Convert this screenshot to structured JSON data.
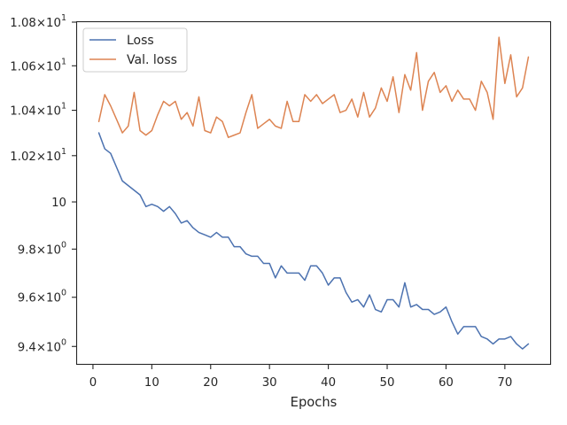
{
  "chart_data": {
    "type": "line",
    "title": "",
    "xlabel": "Epochs",
    "ylabel": "",
    "yscale": "log",
    "xlim": [
      -2.7,
      77.7
    ],
    "ylim": [
      9.33,
      10.8
    ],
    "xticks": [
      0,
      10,
      20,
      30,
      40,
      50,
      60,
      70
    ],
    "xtick_labels": [
      "0",
      "10",
      "20",
      "30",
      "40",
      "50",
      "60",
      "70"
    ],
    "yticks": [
      9.4,
      9.6,
      9.8,
      10.0,
      10.2,
      10.4,
      10.6,
      10.8
    ],
    "ytick_labels": [
      {
        "mant": "9.4",
        "exp": "0"
      },
      {
        "mant": "9.6",
        "exp": "0"
      },
      {
        "mant": "9.8",
        "exp": "0"
      },
      {
        "mant": "10",
        "exp": ""
      },
      {
        "mant": "1.02",
        "exp": "1"
      },
      {
        "mant": "1.04",
        "exp": "1"
      },
      {
        "mant": "1.06",
        "exp": "1"
      },
      {
        "mant": "1.08",
        "exp": "1"
      }
    ],
    "grid": false,
    "legend_position": "upper-left",
    "x": [
      1,
      2,
      3,
      4,
      5,
      6,
      7,
      8,
      9,
      10,
      11,
      12,
      13,
      14,
      15,
      16,
      17,
      18,
      19,
      20,
      21,
      22,
      23,
      24,
      25,
      26,
      27,
      28,
      29,
      30,
      31,
      32,
      33,
      34,
      35,
      36,
      37,
      38,
      39,
      40,
      41,
      42,
      43,
      44,
      45,
      46,
      47,
      48,
      49,
      50,
      51,
      52,
      53,
      54,
      55,
      56,
      57,
      58,
      59,
      60,
      61,
      62,
      63,
      64,
      65,
      66,
      67,
      68,
      69,
      70,
      71,
      72,
      73,
      74
    ],
    "series": [
      {
        "name": "Loss",
        "color": "#4c72b0",
        "values": [
          10.3,
          10.23,
          10.21,
          10.15,
          10.09,
          10.07,
          10.05,
          10.03,
          9.98,
          9.99,
          9.98,
          9.96,
          9.98,
          9.95,
          9.91,
          9.92,
          9.89,
          9.87,
          9.86,
          9.85,
          9.87,
          9.85,
          9.85,
          9.81,
          9.81,
          9.78,
          9.77,
          9.77,
          9.74,
          9.74,
          9.68,
          9.73,
          9.7,
          9.7,
          9.7,
          9.67,
          9.73,
          9.73,
          9.7,
          9.65,
          9.68,
          9.68,
          9.62,
          9.58,
          9.59,
          9.56,
          9.61,
          9.55,
          9.54,
          9.59,
          9.59,
          9.56,
          9.66,
          9.56,
          9.57,
          9.55,
          9.55,
          9.53,
          9.54,
          9.56,
          9.5,
          9.45,
          9.48,
          9.48,
          9.48,
          9.44,
          9.43,
          9.41,
          9.43,
          9.43,
          9.44,
          9.41,
          9.39,
          9.41
        ]
      },
      {
        "name": "Val. loss",
        "color": "#dd8452",
        "values": [
          10.35,
          10.47,
          10.42,
          10.36,
          10.3,
          10.33,
          10.48,
          10.31,
          10.29,
          10.31,
          10.38,
          10.44,
          10.42,
          10.44,
          10.36,
          10.39,
          10.33,
          10.46,
          10.31,
          10.3,
          10.37,
          10.35,
          10.28,
          10.29,
          10.3,
          10.39,
          10.47,
          10.32,
          10.34,
          10.36,
          10.33,
          10.32,
          10.44,
          10.35,
          10.35,
          10.47,
          10.44,
          10.47,
          10.43,
          10.45,
          10.47,
          10.39,
          10.4,
          10.45,
          10.37,
          10.48,
          10.37,
          10.41,
          10.5,
          10.44,
          10.55,
          10.39,
          10.56,
          10.49,
          10.66,
          10.4,
          10.53,
          10.57,
          10.48,
          10.51,
          10.44,
          10.49,
          10.45,
          10.45,
          10.4,
          10.53,
          10.48,
          10.36,
          10.73,
          10.52,
          10.65,
          10.46,
          10.5,
          10.64
        ]
      }
    ]
  }
}
